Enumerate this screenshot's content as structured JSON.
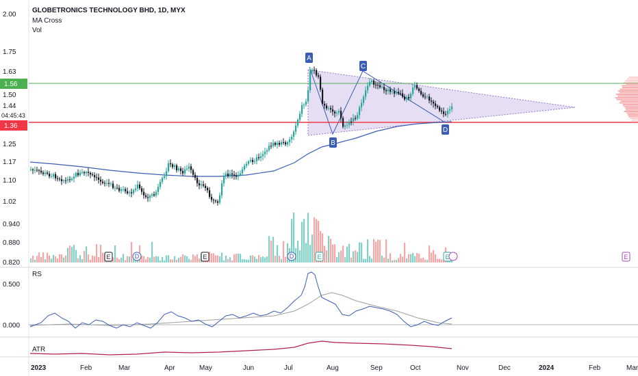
{
  "header": {
    "symbol_title": "GLOBETRONICS TECHNOLOGY BHD, 1D, MYX",
    "indicator_1": "MA Cross",
    "indicator_2": "Vol"
  },
  "price_axis": {
    "labels": [
      "2.00",
      "1.75",
      "1.63",
      "1.50",
      "1.44",
      "1.25",
      "1.17",
      "1.10",
      "1.02",
      "0.940",
      "0.880",
      "0.820"
    ],
    "tags": [
      {
        "label": "1.56",
        "color": "#4caf50",
        "kind": "resistance"
      },
      {
        "label": "1.36",
        "color": "#f23645",
        "kind": "support"
      }
    ],
    "current_price": "1.44",
    "countdown": "04:45:43"
  },
  "rs_panel": {
    "title": "RS",
    "labels": [
      "0.500",
      "0.000"
    ]
  },
  "atr_panel": {
    "title": "ATR"
  },
  "time_axis": {
    "labels": [
      "2023",
      "Feb",
      "Mar",
      "Apr",
      "May",
      "Jun",
      "Jul",
      "Aug",
      "Sep",
      "Oct",
      "Nov",
      "Dec",
      "2024",
      "Feb",
      "Mar"
    ]
  },
  "pattern_points": [
    "A",
    "B",
    "C",
    "D"
  ],
  "event_markers": [
    "E",
    "D",
    "E",
    "D",
    "E",
    "E",
    "E"
  ],
  "colors": {
    "up": "#26a69a",
    "down": "#131722",
    "vol_up": "#7fd1c5",
    "vol_down": "#f7a5a5",
    "ma": "#3b5bb5",
    "resistance": "#4caf50",
    "support": "#f23645",
    "triangle_fill": "#d1c4e9",
    "rs_line": "#3b5bb5",
    "rs_ma": "#9e9e9e",
    "atr_line": "#b2204a",
    "badge": "#3b5bb5"
  }
}
